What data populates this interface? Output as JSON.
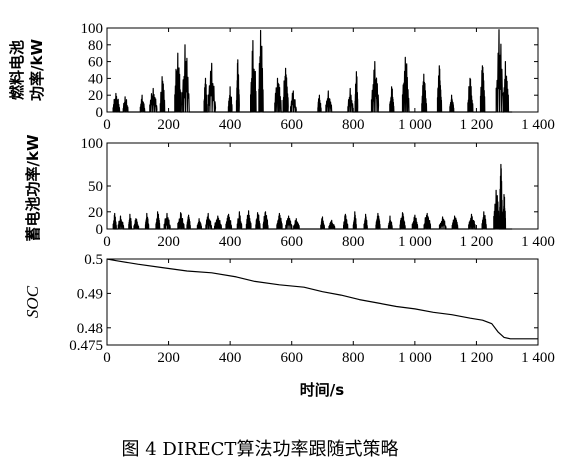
{
  "figure": {
    "caption": "图 4   DIRECT算法功率跟随式策略",
    "xlabel": "时间/s"
  },
  "chart_data": [
    {
      "type": "line",
      "ylabel_line1": "燃料电池",
      "ylabel_line2": "功率/kW",
      "xlim": [
        0,
        1400
      ],
      "ylim": [
        0,
        100
      ],
      "xticks": [
        "0",
        "200",
        "400",
        "600",
        "800",
        "1 000",
        "1 200",
        "1 400"
      ],
      "yticks": [
        "0",
        "20",
        "40",
        "60",
        "80",
        "100"
      ],
      "bursts": [
        {
          "x": 30,
          "peak": 22
        },
        {
          "x": 60,
          "peak": 18
        },
        {
          "x": 115,
          "peak": 20
        },
        {
          "x": 150,
          "peak": 28
        },
        {
          "x": 180,
          "peak": 42
        },
        {
          "x": 230,
          "peak": 70
        },
        {
          "x": 255,
          "peak": 80
        },
        {
          "x": 320,
          "peak": 40
        },
        {
          "x": 340,
          "peak": 58
        },
        {
          "x": 400,
          "peak": 30
        },
        {
          "x": 425,
          "peak": 62
        },
        {
          "x": 475,
          "peak": 85
        },
        {
          "x": 500,
          "peak": 97
        },
        {
          "x": 555,
          "peak": 40
        },
        {
          "x": 580,
          "peak": 52
        },
        {
          "x": 605,
          "peak": 25
        },
        {
          "x": 690,
          "peak": 20
        },
        {
          "x": 720,
          "peak": 25
        },
        {
          "x": 790,
          "peak": 28
        },
        {
          "x": 810,
          "peak": 48
        },
        {
          "x": 870,
          "peak": 60
        },
        {
          "x": 925,
          "peak": 30
        },
        {
          "x": 970,
          "peak": 65
        },
        {
          "x": 1030,
          "peak": 45
        },
        {
          "x": 1080,
          "peak": 55
        },
        {
          "x": 1120,
          "peak": 20
        },
        {
          "x": 1180,
          "peak": 40
        },
        {
          "x": 1220,
          "peak": 55
        },
        {
          "x": 1275,
          "peak": 98
        },
        {
          "x": 1295,
          "peak": 60
        }
      ]
    },
    {
      "type": "line",
      "ylabel": "蓄电池功率/kW",
      "xlim": [
        0,
        1400
      ],
      "ylim": [
        0,
        100
      ],
      "xticks": [
        "0",
        "200",
        "400",
        "600",
        "800",
        "1 000",
        "1 200",
        "1 400"
      ],
      "yticks": [
        "0",
        "20",
        "50",
        "100"
      ],
      "bursts": [
        {
          "x": 25,
          "peak": 18
        },
        {
          "x": 45,
          "peak": 15
        },
        {
          "x": 75,
          "peak": 17
        },
        {
          "x": 95,
          "peak": 12
        },
        {
          "x": 130,
          "peak": 18
        },
        {
          "x": 165,
          "peak": 20
        },
        {
          "x": 195,
          "peak": 18
        },
        {
          "x": 240,
          "peak": 19
        },
        {
          "x": 265,
          "peak": 16
        },
        {
          "x": 300,
          "peak": 12
        },
        {
          "x": 330,
          "peak": 18
        },
        {
          "x": 360,
          "peak": 15
        },
        {
          "x": 395,
          "peak": 17
        },
        {
          "x": 430,
          "peak": 20
        },
        {
          "x": 460,
          "peak": 21
        },
        {
          "x": 490,
          "peak": 19
        },
        {
          "x": 515,
          "peak": 20
        },
        {
          "x": 560,
          "peak": 18
        },
        {
          "x": 590,
          "peak": 15
        },
        {
          "x": 615,
          "peak": 12
        },
        {
          "x": 700,
          "peak": 14
        },
        {
          "x": 730,
          "peak": 10
        },
        {
          "x": 775,
          "peak": 17
        },
        {
          "x": 805,
          "peak": 20
        },
        {
          "x": 840,
          "peak": 17
        },
        {
          "x": 880,
          "peak": 18
        },
        {
          "x": 920,
          "peak": 15
        },
        {
          "x": 960,
          "peak": 19
        },
        {
          "x": 1000,
          "peak": 16
        },
        {
          "x": 1040,
          "peak": 18
        },
        {
          "x": 1090,
          "peak": 14
        },
        {
          "x": 1130,
          "peak": 15
        },
        {
          "x": 1185,
          "peak": 17
        },
        {
          "x": 1225,
          "peak": 20
        },
        {
          "x": 1265,
          "peak": 45
        },
        {
          "x": 1280,
          "peak": 75
        },
        {
          "x": 1290,
          "peak": 40
        }
      ]
    },
    {
      "type": "line",
      "ylabel": "SOC",
      "xlim": [
        0,
        1400
      ],
      "ylim": [
        0.475,
        0.5
      ],
      "xticks": [
        "0",
        "200",
        "400",
        "600",
        "800",
        "1 000",
        "1 200",
        "1 400"
      ],
      "yticks": [
        "0.475",
        "0.48",
        "0.49",
        "0.5"
      ],
      "x": [
        0,
        30,
        100,
        180,
        260,
        340,
        420,
        480,
        560,
        640,
        700,
        760,
        820,
        880,
        940,
        1000,
        1060,
        1120,
        1180,
        1220,
        1250,
        1270,
        1290,
        1310,
        1400
      ],
      "y": [
        0.5,
        0.4995,
        0.4985,
        0.4975,
        0.4965,
        0.496,
        0.4948,
        0.4935,
        0.4925,
        0.4918,
        0.4905,
        0.4895,
        0.4882,
        0.4872,
        0.4862,
        0.4855,
        0.4845,
        0.4838,
        0.4828,
        0.4822,
        0.4812,
        0.4788,
        0.4772,
        0.4768,
        0.4768
      ]
    }
  ]
}
